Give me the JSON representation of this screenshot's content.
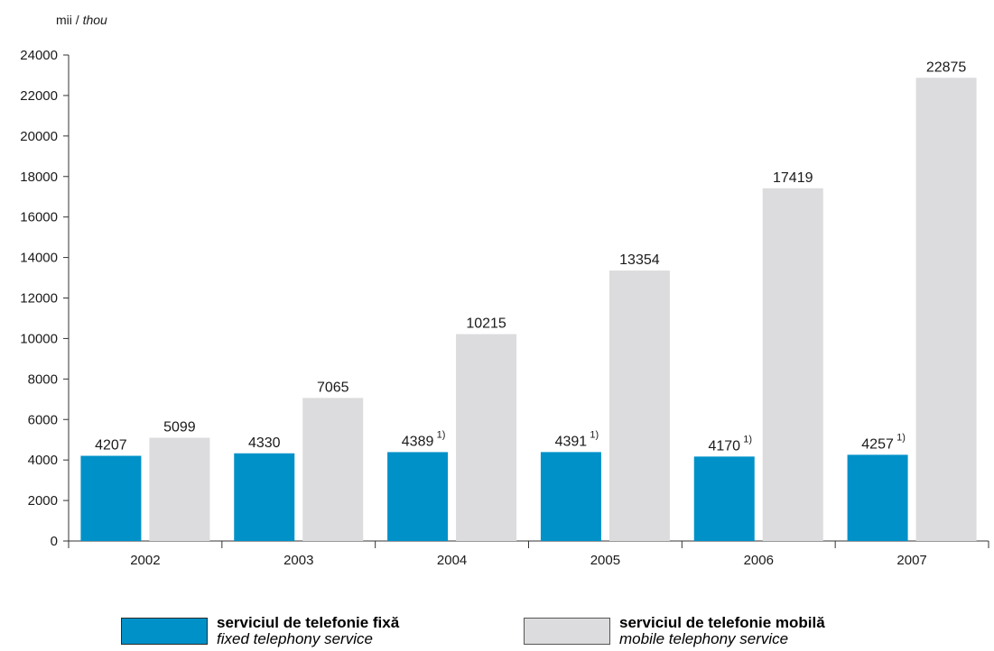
{
  "unit_label": {
    "ro": "mii",
    "sep": " / ",
    "en": "thou"
  },
  "legend": [
    {
      "ro": "serviciul de telefonie fixă",
      "en": "fixed telephony service",
      "color": "#0091c9"
    },
    {
      "ro": "serviciul de telefonie mobilă",
      "en": "mobile telephony service",
      "color": "#dcdcde"
    }
  ],
  "chart_data": {
    "type": "bar",
    "categories": [
      "2002",
      "2003",
      "2004",
      "2005",
      "2006",
      "2007"
    ],
    "series": [
      {
        "values": [
          4207,
          4330,
          4389,
          4391,
          4170,
          4257
        ],
        "footnotes": [
          "",
          "",
          "1)",
          "1)",
          "1)",
          "1)"
        ],
        "color": "#0091c9"
      },
      {
        "values": [
          5099,
          7065,
          10215,
          13354,
          17419,
          22875
        ],
        "color": "#dcdcde"
      }
    ],
    "ylim": [
      0,
      24000
    ],
    "yticks": [
      "0",
      "2000",
      "4000",
      "6000",
      "8000",
      "10000",
      "12000",
      "14000",
      "16000",
      "18000",
      "20000",
      "22000",
      "24000"
    ],
    "grid": false,
    "legend_position": "bottom"
  }
}
